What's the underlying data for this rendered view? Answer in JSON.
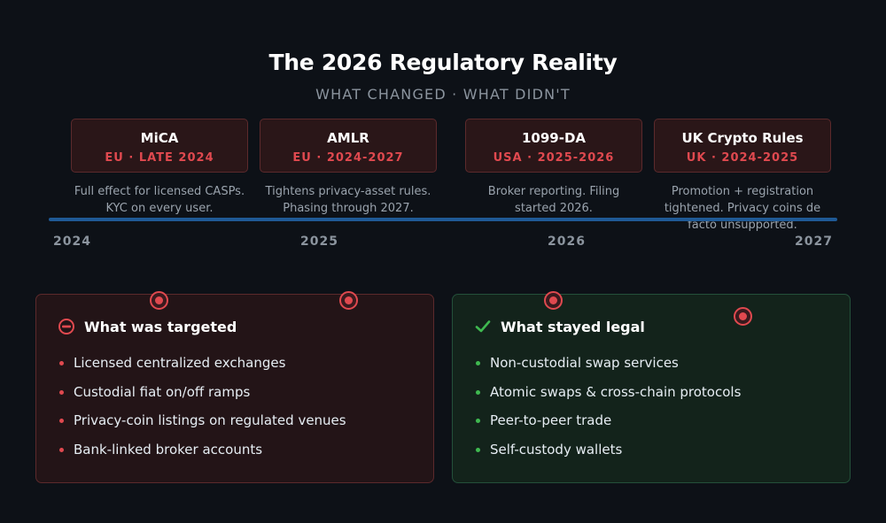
{
  "title": "The 2026 Regulatory Reality",
  "subtitle": "WHAT CHANGED · WHAT DIDN'T",
  "regulations": [
    {
      "name": "MiCA",
      "meta": "EU · LATE 2024",
      "desc": "Full effect for licensed CASPs. KYC on every user."
    },
    {
      "name": "AMLR",
      "meta": "EU · 2024-2027",
      "desc": "Tightens privacy-asset rules. Phasing through 2027."
    },
    {
      "name": "1099-DA",
      "meta": "USA · 2025-2026",
      "desc": "Broker reporting. Filing started 2026."
    },
    {
      "name": "UK Crypto Rules",
      "meta": "UK · 2024-2025",
      "desc": "Promotion + registration tightened. Privacy coins de facto unsupported."
    }
  ],
  "years": [
    "2024",
    "2025",
    "2026",
    "2027"
  ],
  "targeted": {
    "title": "What was targeted",
    "icon": "no-entry-icon",
    "color": "#e0494f",
    "items": [
      "Licensed centralized exchanges",
      "Custodial fiat on/off ramps",
      "Privacy-coin listings on regulated venues",
      "Bank-linked broker accounts"
    ]
  },
  "legal": {
    "title": "What stayed legal",
    "icon": "checkmark-icon",
    "color": "#3fb950",
    "items": [
      "Non-custodial swap services",
      "Atomic swaps & cross-chain protocols",
      "Peer-to-peer trade",
      "Self-custody wallets"
    ]
  }
}
